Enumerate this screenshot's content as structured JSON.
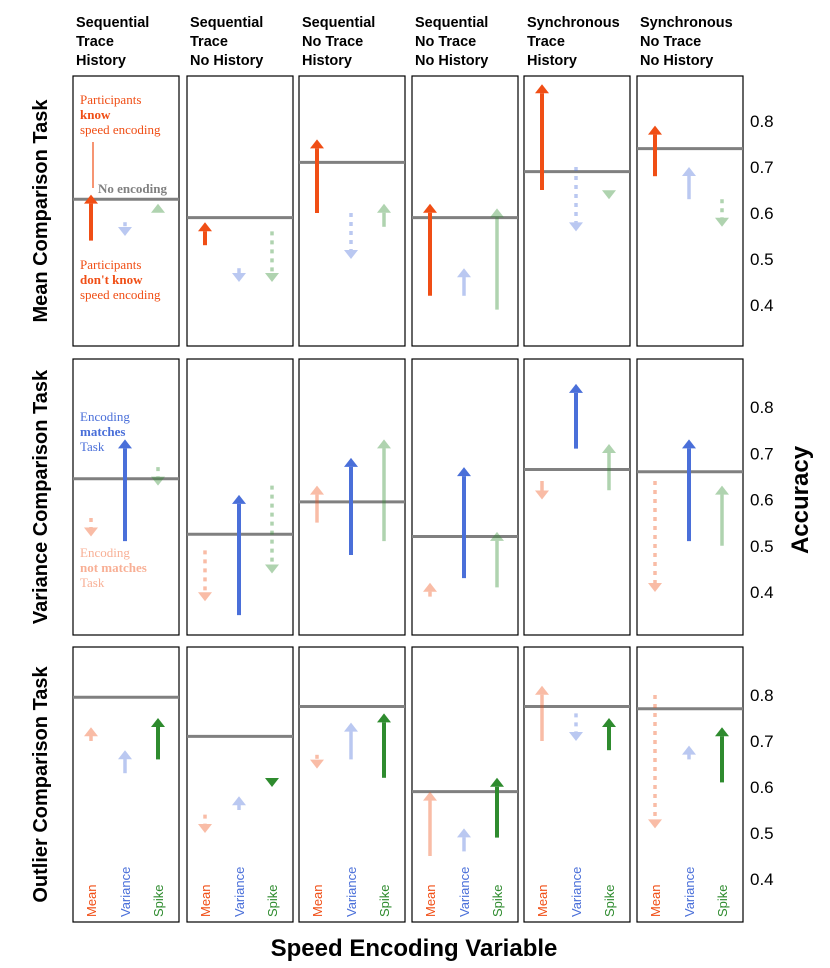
{
  "chart_data": {
    "type": "faceted-arrow-chart",
    "xlabel": "Speed Encoding Variable",
    "ylabel": "Accuracy",
    "ylim": [
      0.32,
      0.9
    ],
    "yticks": [
      "0.4",
      "0.5",
      "0.6",
      "0.7",
      "0.8"
    ],
    "categories": [
      "Mean",
      "Variance",
      "Spike"
    ],
    "colors": {
      "Mean": "#f04e15",
      "Variance": "#4a6fd9",
      "Spike": "#2e8b2e",
      "baseline": "#808080"
    },
    "columns": [
      {
        "title": [
          "Sequential",
          "Trace",
          "History"
        ]
      },
      {
        "title": [
          "Sequential",
          "Trace",
          "No History"
        ]
      },
      {
        "title": [
          "Sequential",
          "No Trace",
          "History"
        ]
      },
      {
        "title": [
          "Sequential",
          "No Trace",
          "No History"
        ]
      },
      {
        "title": [
          "Synchronous",
          "Trace",
          "History"
        ]
      },
      {
        "title": [
          "Synchronous",
          "No Trace",
          "No History"
        ]
      }
    ],
    "rows": [
      {
        "label": "Mean Comparison Task",
        "matching": "Mean",
        "panels": [
          {
            "baseline": 0.63,
            "arrows": [
              {
                "var": "Mean",
                "from": 0.54,
                "to": 0.64,
                "style": "solid"
              },
              {
                "var": "Variance",
                "from": 0.58,
                "to": 0.55,
                "style": "dashed"
              },
              {
                "var": "Spike",
                "from": 0.6,
                "to": 0.62,
                "style": "solid"
              }
            ]
          },
          {
            "baseline": 0.59,
            "arrows": [
              {
                "var": "Mean",
                "from": 0.53,
                "to": 0.58,
                "style": "solid"
              },
              {
                "var": "Variance",
                "from": 0.48,
                "to": 0.45,
                "style": "solid"
              },
              {
                "var": "Spike",
                "from": 0.56,
                "to": 0.45,
                "style": "dashed"
              }
            ]
          },
          {
            "baseline": 0.71,
            "arrows": [
              {
                "var": "Mean",
                "from": 0.6,
                "to": 0.76,
                "style": "solid"
              },
              {
                "var": "Variance",
                "from": 0.6,
                "to": 0.5,
                "style": "dashed"
              },
              {
                "var": "Spike",
                "from": 0.57,
                "to": 0.62,
                "style": "solid"
              }
            ]
          },
          {
            "baseline": 0.59,
            "arrows": [
              {
                "var": "Mean",
                "from": 0.42,
                "to": 0.62,
                "style": "solid"
              },
              {
                "var": "Variance",
                "from": 0.42,
                "to": 0.48,
                "style": "solid"
              },
              {
                "var": "Spike",
                "from": 0.39,
                "to": 0.61,
                "style": "solid"
              }
            ]
          },
          {
            "baseline": 0.69,
            "arrows": [
              {
                "var": "Mean",
                "from": 0.65,
                "to": 0.88,
                "style": "solid"
              },
              {
                "var": "Variance",
                "from": 0.7,
                "to": 0.56,
                "style": "dashed"
              },
              {
                "var": "Spike",
                "from": 0.65,
                "to": 0.63,
                "style": "solid"
              }
            ]
          },
          {
            "baseline": 0.74,
            "arrows": [
              {
                "var": "Mean",
                "from": 0.68,
                "to": 0.79,
                "style": "solid"
              },
              {
                "var": "Variance",
                "from": 0.63,
                "to": 0.7,
                "style": "solid"
              },
              {
                "var": "Spike",
                "from": 0.63,
                "to": 0.57,
                "style": "dashed"
              }
            ]
          }
        ]
      },
      {
        "label": "Variance Comparison Task",
        "matching": "Variance",
        "panels": [
          {
            "baseline": 0.645,
            "arrows": [
              {
                "var": "Mean",
                "from": 0.56,
                "to": 0.52,
                "style": "dashed"
              },
              {
                "var": "Variance",
                "from": 0.51,
                "to": 0.73,
                "style": "solid"
              },
              {
                "var": "Spike",
                "from": 0.67,
                "to": 0.63,
                "style": "dashed"
              }
            ]
          },
          {
            "baseline": 0.525,
            "arrows": [
              {
                "var": "Mean",
                "from": 0.49,
                "to": 0.38,
                "style": "dashed"
              },
              {
                "var": "Variance",
                "from": 0.35,
                "to": 0.61,
                "style": "solid"
              },
              {
                "var": "Spike",
                "from": 0.63,
                "to": 0.44,
                "style": "dashed"
              }
            ]
          },
          {
            "baseline": 0.595,
            "arrows": [
              {
                "var": "Mean",
                "from": 0.55,
                "to": 0.63,
                "style": "solid"
              },
              {
                "var": "Variance",
                "from": 0.48,
                "to": 0.69,
                "style": "solid"
              },
              {
                "var": "Spike",
                "from": 0.51,
                "to": 0.73,
                "style": "solid"
              }
            ]
          },
          {
            "baseline": 0.52,
            "arrows": [
              {
                "var": "Mean",
                "from": 0.39,
                "to": 0.42,
                "style": "solid"
              },
              {
                "var": "Variance",
                "from": 0.43,
                "to": 0.67,
                "style": "solid"
              },
              {
                "var": "Spike",
                "from": 0.41,
                "to": 0.53,
                "style": "solid"
              }
            ]
          },
          {
            "baseline": 0.665,
            "arrows": [
              {
                "var": "Mean",
                "from": 0.64,
                "to": 0.6,
                "style": "solid"
              },
              {
                "var": "Variance",
                "from": 0.71,
                "to": 0.85,
                "style": "solid"
              },
              {
                "var": "Spike",
                "from": 0.62,
                "to": 0.72,
                "style": "solid"
              }
            ]
          },
          {
            "baseline": 0.66,
            "arrows": [
              {
                "var": "Mean",
                "from": 0.64,
                "to": 0.4,
                "style": "dashed"
              },
              {
                "var": "Variance",
                "from": 0.51,
                "to": 0.73,
                "style": "solid"
              },
              {
                "var": "Spike",
                "from": 0.5,
                "to": 0.63,
                "style": "solid"
              }
            ]
          }
        ]
      },
      {
        "label": "Outlier Comparison Task",
        "matching": "Spike",
        "panels": [
          {
            "baseline": 0.795,
            "arrows": [
              {
                "var": "Mean",
                "from": 0.7,
                "to": 0.73,
                "style": "solid"
              },
              {
                "var": "Variance",
                "from": 0.63,
                "to": 0.68,
                "style": "solid"
              },
              {
                "var": "Spike",
                "from": 0.66,
                "to": 0.75,
                "style": "solid"
              }
            ]
          },
          {
            "baseline": 0.71,
            "arrows": [
              {
                "var": "Mean",
                "from": 0.54,
                "to": 0.5,
                "style": "dashed"
              },
              {
                "var": "Variance",
                "from": 0.55,
                "to": 0.58,
                "style": "solid"
              },
              {
                "var": "Spike",
                "from": 0.61,
                "to": 0.6,
                "style": "solid"
              }
            ]
          },
          {
            "baseline": 0.775,
            "arrows": [
              {
                "var": "Mean",
                "from": 0.67,
                "to": 0.64,
                "style": "dashed"
              },
              {
                "var": "Variance",
                "from": 0.66,
                "to": 0.74,
                "style": "solid"
              },
              {
                "var": "Spike",
                "from": 0.62,
                "to": 0.76,
                "style": "solid"
              }
            ]
          },
          {
            "baseline": 0.59,
            "arrows": [
              {
                "var": "Mean",
                "from": 0.45,
                "to": 0.59,
                "style": "solid"
              },
              {
                "var": "Variance",
                "from": 0.46,
                "to": 0.51,
                "style": "solid"
              },
              {
                "var": "Spike",
                "from": 0.49,
                "to": 0.62,
                "style": "solid"
              }
            ]
          },
          {
            "baseline": 0.775,
            "arrows": [
              {
                "var": "Mean",
                "from": 0.7,
                "to": 0.82,
                "style": "solid"
              },
              {
                "var": "Variance",
                "from": 0.76,
                "to": 0.7,
                "style": "dashed"
              },
              {
                "var": "Spike",
                "from": 0.68,
                "to": 0.75,
                "style": "solid"
              }
            ]
          },
          {
            "baseline": 0.77,
            "arrows": [
              {
                "var": "Mean",
                "from": 0.8,
                "to": 0.51,
                "style": "dashed"
              },
              {
                "var": "Variance",
                "from": 0.66,
                "to": 0.69,
                "style": "solid"
              },
              {
                "var": "Spike",
                "from": 0.61,
                "to": 0.73,
                "style": "solid"
              }
            ]
          }
        ]
      }
    ],
    "annotations": {
      "mean_know": [
        "Participants",
        "know",
        "speed encoding"
      ],
      "no_encoding": "No encoding",
      "mean_dont_know": [
        "Participants",
        "don't know",
        "speed encoding"
      ],
      "var_matches": [
        "Encoding",
        "matches",
        "Task"
      ],
      "var_not_matches": [
        "Encoding",
        "not matches",
        "Task"
      ]
    }
  }
}
